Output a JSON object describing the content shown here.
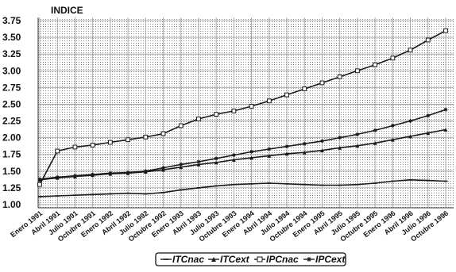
{
  "chart_data": {
    "type": "line",
    "title": "INDICE",
    "xlabel": "",
    "ylabel": "",
    "ylim": [
      1.0,
      3.75
    ],
    "yticks": [
      "3.75",
      "3.50",
      "3.25",
      "3.00",
      "2.75",
      "2.50",
      "2.25",
      "2.00",
      "1.75",
      "1.50",
      "1.25",
      "1.00"
    ],
    "x": [
      "Enero 1991",
      "Abril 1991",
      "Julio 1991",
      "Octubre 1991",
      "Enero 1992",
      "Abril 1992",
      "Julio 1992",
      "Octubre 1992",
      "Enero 1993",
      "Abril 1993",
      "Julio 1993",
      "Octubre 1993",
      "Enero 1994",
      "Abril 1994",
      "Julio 1994",
      "Octubre 1994",
      "Enero 1995",
      "Abril 1995",
      "Julio 1995",
      "Octubre 1995",
      "Enero 1996",
      "Abril 1996",
      "Julio 1996",
      "Octubre 1996"
    ],
    "grid": true,
    "legend_position": "bottom",
    "series": [
      {
        "name": "ITCnac",
        "marker": "dash",
        "values": [
          1.12,
          1.13,
          1.14,
          1.15,
          1.16,
          1.17,
          1.16,
          1.18,
          1.22,
          1.25,
          1.28,
          1.3,
          1.31,
          1.32,
          1.31,
          1.3,
          1.29,
          1.29,
          1.3,
          1.32,
          1.35,
          1.37,
          1.36,
          1.35
        ]
      },
      {
        "name": "ITCext",
        "marker": "triangle",
        "values": [
          1.37,
          1.4,
          1.42,
          1.44,
          1.46,
          1.47,
          1.49,
          1.52,
          1.56,
          1.6,
          1.63,
          1.67,
          1.7,
          1.73,
          1.76,
          1.78,
          1.81,
          1.85,
          1.88,
          1.92,
          1.97,
          2.02,
          2.07,
          2.12
        ]
      },
      {
        "name": "IPCnac",
        "marker": "square",
        "values": [
          1.3,
          1.8,
          1.86,
          1.89,
          1.93,
          1.97,
          2.01,
          2.06,
          2.18,
          2.28,
          2.35,
          2.4,
          2.47,
          2.55,
          2.64,
          2.73,
          2.82,
          2.91,
          3.0,
          3.09,
          3.19,
          3.31,
          3.46,
          3.6
        ]
      },
      {
        "name": "IPCext",
        "marker": "star",
        "values": [
          1.38,
          1.41,
          1.43,
          1.45,
          1.47,
          1.48,
          1.5,
          1.55,
          1.6,
          1.64,
          1.69,
          1.74,
          1.79,
          1.83,
          1.87,
          1.91,
          1.95,
          2.0,
          2.05,
          2.11,
          2.18,
          2.25,
          2.33,
          2.42
        ]
      }
    ]
  },
  "colors": {
    "line": "#1a1a1a",
    "grid": "#9a9a9a",
    "legend_border": "#111111"
  }
}
